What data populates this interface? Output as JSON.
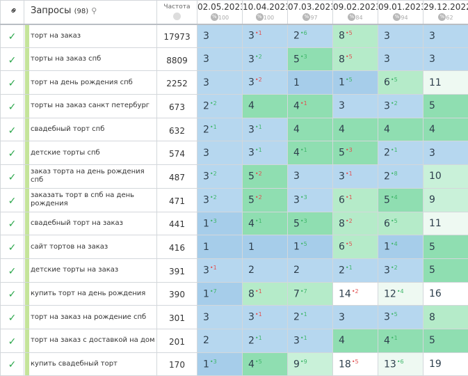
{
  "header": {
    "link_icon": "link-icon",
    "queries_label": "Запросы",
    "queries_count": "(98)",
    "frequency_label": "Частота"
  },
  "dates": [
    {
      "date": "02.05.2023",
      "pct": "100"
    },
    {
      "date": "10.04.2023",
      "pct": "100"
    },
    {
      "date": "07.03.2023",
      "pct": "97"
    },
    {
      "date": "09.02.2023",
      "pct": "84"
    },
    {
      "date": "09.01.2023",
      "pct": "94"
    },
    {
      "date": "29.12.2022",
      "pct": "62"
    }
  ],
  "colors": {
    "check": "#2aa64a",
    "up": "#3fb66a",
    "down": "#e05050",
    "blue": "#b6d7ef",
    "green": "#8fdeb1"
  },
  "rows": [
    {
      "q": "торт на заказ",
      "f": "17973",
      "c": [
        [
          "3",
          "",
          ""
        ],
        [
          "3",
          "1",
          "r"
        ],
        [
          "2",
          "6",
          "g"
        ],
        [
          "8",
          "5",
          "r"
        ],
        [
          "3",
          "",
          ""
        ],
        [
          "3",
          "",
          ""
        ]
      ]
    },
    {
      "q": "торты на заказ спб",
      "f": "8809",
      "c": [
        [
          "3",
          "",
          ""
        ],
        [
          "3",
          "2",
          "g"
        ],
        [
          "5",
          "3",
          "g"
        ],
        [
          "8",
          "5",
          "r"
        ],
        [
          "3",
          "",
          ""
        ],
        [
          "3",
          "",
          ""
        ]
      ]
    },
    {
      "q": "торт на день рождения спб",
      "f": "2252",
      "c": [
        [
          "3",
          "",
          ""
        ],
        [
          "3",
          "2",
          "r"
        ],
        [
          "1",
          "",
          ""
        ],
        [
          "1",
          "5",
          "g"
        ],
        [
          "6",
          "5",
          "g"
        ],
        [
          "11",
          "",
          ""
        ]
      ]
    },
    {
      "q": "торты на заказ санкт петербург",
      "f": "673",
      "c": [
        [
          "2",
          "2",
          "g"
        ],
        [
          "4",
          "",
          ""
        ],
        [
          "4",
          "1",
          "r"
        ],
        [
          "3",
          "",
          ""
        ],
        [
          "3",
          "2",
          "g"
        ],
        [
          "5",
          "",
          ""
        ]
      ]
    },
    {
      "q": "свадебный торт спб",
      "f": "632",
      "c": [
        [
          "2",
          "1",
          "g"
        ],
        [
          "3",
          "1",
          "g"
        ],
        [
          "4",
          "",
          ""
        ],
        [
          "4",
          "",
          ""
        ],
        [
          "4",
          "",
          ""
        ],
        [
          "4",
          "",
          ""
        ]
      ]
    },
    {
      "q": "детские торты спб",
      "f": "574",
      "c": [
        [
          "3",
          "",
          ""
        ],
        [
          "3",
          "1",
          "g"
        ],
        [
          "4",
          "1",
          "g"
        ],
        [
          "5",
          "3",
          "r"
        ],
        [
          "2",
          "1",
          "g"
        ],
        [
          "3",
          "",
          ""
        ]
      ]
    },
    {
      "q": "заказ торта на день рождения спб",
      "f": "487",
      "c": [
        [
          "3",
          "2",
          "g"
        ],
        [
          "5",
          "2",
          "r"
        ],
        [
          "3",
          "",
          ""
        ],
        [
          "3",
          "1",
          "r"
        ],
        [
          "2",
          "8",
          "g"
        ],
        [
          "10",
          "",
          ""
        ]
      ]
    },
    {
      "q": "заказать торт в спб на день рождения",
      "f": "471",
      "c": [
        [
          "3",
          "2",
          "g"
        ],
        [
          "5",
          "2",
          "r"
        ],
        [
          "3",
          "3",
          "g"
        ],
        [
          "6",
          "1",
          "r"
        ],
        [
          "5",
          "4",
          "g"
        ],
        [
          "9",
          "",
          ""
        ]
      ]
    },
    {
      "q": "свадебный торт на заказ",
      "f": "441",
      "c": [
        [
          "1",
          "3",
          "g"
        ],
        [
          "4",
          "1",
          "g"
        ],
        [
          "5",
          "3",
          "g"
        ],
        [
          "8",
          "2",
          "r"
        ],
        [
          "6",
          "5",
          "g"
        ],
        [
          "11",
          "",
          ""
        ]
      ]
    },
    {
      "q": "сайт тортов на заказ",
      "f": "416",
      "c": [
        [
          "1",
          "",
          ""
        ],
        [
          "1",
          "",
          ""
        ],
        [
          "1",
          "5",
          "g"
        ],
        [
          "6",
          "5",
          "r"
        ],
        [
          "1",
          "4",
          "g"
        ],
        [
          "5",
          "",
          ""
        ]
      ]
    },
    {
      "q": "детские торты на заказ",
      "f": "391",
      "c": [
        [
          "3",
          "1",
          "r"
        ],
        [
          "2",
          "",
          ""
        ],
        [
          "2",
          "",
          ""
        ],
        [
          "2",
          "1",
          "g"
        ],
        [
          "3",
          "2",
          "g"
        ],
        [
          "5",
          "",
          ""
        ]
      ]
    },
    {
      "q": "купить торт на день рождения",
      "f": "390",
      "c": [
        [
          "1",
          "7",
          "g"
        ],
        [
          "8",
          "1",
          "r"
        ],
        [
          "7",
          "7",
          "g"
        ],
        [
          "14",
          "2",
          "r"
        ],
        [
          "12",
          "4",
          "g"
        ],
        [
          "16",
          "",
          ""
        ]
      ]
    },
    {
      "q": "торт на заказ на рождение спб",
      "f": "301",
      "c": [
        [
          "3",
          "",
          ""
        ],
        [
          "3",
          "1",
          "r"
        ],
        [
          "2",
          "1",
          "g"
        ],
        [
          "3",
          "",
          ""
        ],
        [
          "3",
          "5",
          "g"
        ],
        [
          "8",
          "",
          ""
        ]
      ]
    },
    {
      "q": "торт на заказ с доставкой на дом",
      "f": "201",
      "c": [
        [
          "2",
          "",
          ""
        ],
        [
          "2",
          "1",
          "g"
        ],
        [
          "3",
          "1",
          "g"
        ],
        [
          "4",
          "",
          ""
        ],
        [
          "4",
          "1",
          "g"
        ],
        [
          "5",
          "",
          ""
        ]
      ]
    },
    {
      "q": "купить свадебный торт",
      "f": "170",
      "c": [
        [
          "1",
          "3",
          "g"
        ],
        [
          "4",
          "5",
          "g"
        ],
        [
          "9",
          "9",
          "g"
        ],
        [
          "18",
          "5",
          "r"
        ],
        [
          "13",
          "6",
          "g"
        ],
        [
          "19",
          "",
          ""
        ]
      ]
    }
  ]
}
